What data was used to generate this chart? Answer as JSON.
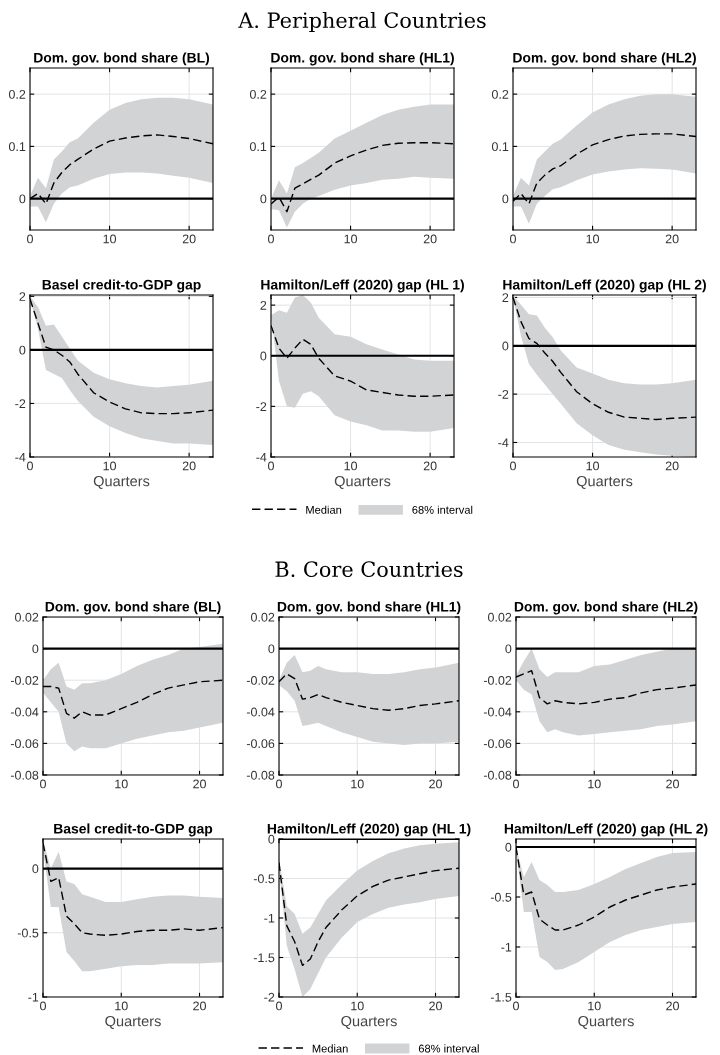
{
  "chart_data": [
    {
      "type": "line",
      "title": "Dom. gov. bond share (BL)",
      "x": [
        0,
        1,
        2,
        3,
        4,
        5,
        6,
        8,
        10,
        12,
        14,
        16,
        18,
        20,
        23
      ],
      "xlim": [
        0,
        23
      ],
      "xticks": [
        0,
        10,
        20
      ],
      "ylim": [
        -0.06,
        0.25
      ],
      "yticks": [
        0,
        0.1,
        0.2
      ],
      "grid": true,
      "ref_lines": [
        {
          "axis": "y",
          "value": 0,
          "color": "#000000"
        }
      ],
      "series": [
        {
          "color": "#000000",
          "line_style": "dashed",
          "values": [
            0.0,
            0.01,
            -0.01,
            0.03,
            0.05,
            0.065,
            0.075,
            0.095,
            0.11,
            0.116,
            0.12,
            0.122,
            0.119,
            0.115,
            0.105
          ],
          "lower": [
            -0.015,
            -0.015,
            -0.045,
            -0.01,
            0.01,
            0.022,
            0.025,
            0.038,
            0.047,
            0.05,
            0.05,
            0.048,
            0.044,
            0.04,
            0.03
          ],
          "upper": [
            0.005,
            0.04,
            0.02,
            0.075,
            0.09,
            0.108,
            0.115,
            0.145,
            0.17,
            0.183,
            0.19,
            0.193,
            0.193,
            0.19,
            0.18
          ]
        }
      ]
    },
    {
      "type": "line",
      "title": "Dom. gov. bond share (HL1)",
      "subtitle": "A. Peripheral Countries",
      "x": [
        0,
        1,
        2,
        3,
        4,
        5,
        6,
        8,
        10,
        12,
        14,
        16,
        18,
        20,
        23
      ],
      "xlim": [
        0,
        23
      ],
      "xticks": [
        0,
        10,
        20
      ],
      "ylim": [
        -0.06,
        0.25
      ],
      "yticks": [
        0,
        0.1,
        0.2
      ],
      "grid": true,
      "ref_lines": [
        {
          "axis": "y",
          "value": 0,
          "color": "#000000"
        }
      ],
      "series": [
        {
          "color": "#000000",
          "line_style": "dashed",
          "values": [
            -0.01,
            0.003,
            -0.025,
            0.02,
            0.028,
            0.037,
            0.045,
            0.068,
            0.082,
            0.093,
            0.102,
            0.106,
            0.107,
            0.107,
            0.105
          ],
          "lower": [
            -0.02,
            -0.022,
            -0.055,
            -0.025,
            -0.01,
            0.0,
            0.005,
            0.017,
            0.025,
            0.03,
            0.036,
            0.038,
            0.042,
            0.04,
            0.038
          ],
          "upper": [
            0.0,
            0.035,
            0.01,
            0.06,
            0.068,
            0.078,
            0.088,
            0.115,
            0.13,
            0.145,
            0.16,
            0.17,
            0.176,
            0.18,
            0.18
          ]
        }
      ]
    },
    {
      "type": "line",
      "title": "Dom. gov. bond share (HL2)",
      "x": [
        0,
        1,
        2,
        3,
        4,
        5,
        6,
        8,
        10,
        12,
        14,
        16,
        18,
        20,
        23
      ],
      "xlim": [
        0,
        23
      ],
      "xticks": [
        0,
        10,
        20
      ],
      "ylim": [
        -0.06,
        0.25
      ],
      "yticks": [
        0,
        0.1,
        0.2
      ],
      "grid": true,
      "ref_lines": [
        {
          "axis": "y",
          "value": 0,
          "color": "#000000"
        }
      ],
      "series": [
        {
          "color": "#000000",
          "line_style": "dashed",
          "values": [
            -0.005,
            0.01,
            -0.01,
            0.03,
            0.045,
            0.057,
            0.063,
            0.085,
            0.103,
            0.113,
            0.12,
            0.123,
            0.124,
            0.124,
            0.119
          ],
          "lower": [
            -0.015,
            -0.015,
            -0.048,
            -0.01,
            0.005,
            0.018,
            0.022,
            0.035,
            0.046,
            0.052,
            0.056,
            0.058,
            0.057,
            0.056,
            0.048
          ],
          "upper": [
            0.005,
            0.04,
            0.025,
            0.075,
            0.09,
            0.105,
            0.113,
            0.14,
            0.165,
            0.18,
            0.19,
            0.197,
            0.2,
            0.2,
            0.195
          ]
        }
      ]
    },
    {
      "type": "line",
      "title": "Basel credit-to-GDP gap",
      "xlabel": "Quarters",
      "x": [
        0,
        1,
        2,
        3,
        4,
        5,
        6,
        8,
        10,
        12,
        14,
        16,
        18,
        20,
        23
      ],
      "xlim": [
        0,
        23
      ],
      "xticks": [
        0,
        10,
        20
      ],
      "ylim": [
        -4,
        2.05
      ],
      "yticks": [
        -4,
        -2,
        0,
        2
      ],
      "grid": true,
      "ref_lines": [
        {
          "axis": "y",
          "value": 0,
          "color": "#000000"
        }
      ],
      "series": [
        {
          "color": "#000000",
          "line_style": "dashed",
          "values": [
            1.9,
            1.0,
            0.1,
            0.0,
            -0.2,
            -0.45,
            -0.9,
            -1.6,
            -1.95,
            -2.2,
            -2.35,
            -2.38,
            -2.38,
            -2.35,
            -2.25
          ],
          "lower": [
            1.9,
            0.8,
            -0.75,
            -0.9,
            -1.05,
            -1.5,
            -1.9,
            -2.5,
            -2.85,
            -3.1,
            -3.3,
            -3.4,
            -3.5,
            -3.5,
            -3.55
          ],
          "upper": [
            2.0,
            1.6,
            0.9,
            0.95,
            0.5,
            0.05,
            -0.4,
            -0.85,
            -1.1,
            -1.25,
            -1.35,
            -1.4,
            -1.35,
            -1.3,
            -1.15
          ]
        }
      ]
    },
    {
      "type": "line",
      "title": "Hamilton/Leff (2020) gap (HL 1)",
      "xlabel": "Quarters",
      "annotations": [
        "68% interval"
      ],
      "x": [
        0,
        1,
        2,
        3,
        4,
        5,
        6,
        8,
        10,
        12,
        14,
        16,
        18,
        20,
        23
      ],
      "xlim": [
        0,
        23
      ],
      "xticks": [
        0,
        10,
        20
      ],
      "ylim": [
        -4,
        2.4
      ],
      "yticks": [
        -4,
        -2,
        0,
        2
      ],
      "grid": true,
      "legend": "bottom",
      "ref_lines": [
        {
          "axis": "y",
          "value": 0,
          "color": "#000000"
        }
      ],
      "series": [
        {
          "name": "Median",
          "color": "#000000",
          "line_style": "dashed",
          "values": [
            1.2,
            0.3,
            -0.1,
            0.3,
            0.65,
            0.45,
            -0.1,
            -0.8,
            -1.0,
            -1.35,
            -1.45,
            -1.55,
            -1.6,
            -1.6,
            -1.55
          ],
          "lower": [
            1.6,
            -1.0,
            -2.0,
            -2.05,
            -1.5,
            -1.4,
            -1.6,
            -2.35,
            -2.6,
            -2.75,
            -2.95,
            -2.95,
            -3.0,
            -3.0,
            -2.85
          ],
          "upper": [
            1.6,
            1.8,
            1.7,
            2.3,
            2.4,
            2.1,
            1.5,
            0.85,
            0.75,
            0.45,
            0.25,
            0.05,
            -0.15,
            -0.2,
            -0.2
          ]
        }
      ]
    },
    {
      "type": "line",
      "title": "Hamilton/Leff (2020) gap (HL 2)",
      "xlabel": "Quarters",
      "x": [
        0,
        1,
        2,
        3,
        4,
        5,
        6,
        8,
        10,
        12,
        14,
        16,
        18,
        20,
        23
      ],
      "xlim": [
        0,
        23
      ],
      "xticks": [
        0,
        10,
        20
      ],
      "ylim": [
        -4.6,
        2.1
      ],
      "yticks": [
        -4,
        -2,
        0,
        2
      ],
      "grid": true,
      "ref_lines": [
        {
          "axis": "y",
          "value": 0,
          "color": "#000000"
        }
      ],
      "series": [
        {
          "color": "#000000",
          "line_style": "dashed",
          "values": [
            2.0,
            1.0,
            0.3,
            0.1,
            -0.3,
            -0.65,
            -1.1,
            -1.9,
            -2.4,
            -2.75,
            -2.95,
            -3.0,
            -3.05,
            -3.0,
            -2.95
          ],
          "lower": [
            2.0,
            0.4,
            -0.75,
            -1.2,
            -1.6,
            -2.0,
            -2.4,
            -3.2,
            -3.7,
            -4.1,
            -4.3,
            -4.4,
            -4.5,
            -4.55,
            -4.6
          ],
          "upper": [
            2.1,
            1.7,
            1.3,
            1.25,
            0.75,
            0.35,
            -0.2,
            -0.9,
            -1.15,
            -1.4,
            -1.55,
            -1.6,
            -1.6,
            -1.55,
            -1.4
          ]
        }
      ]
    },
    {
      "type": "line",
      "title": "Dom. gov. bond share (BL)",
      "x": [
        0,
        1,
        2,
        3,
        4,
        5,
        6,
        8,
        10,
        12,
        14,
        16,
        18,
        20,
        23
      ],
      "xlim": [
        0,
        23
      ],
      "xticks": [
        0,
        10,
        20
      ],
      "ylim": [
        -0.08,
        0.02
      ],
      "yticks": [
        -0.08,
        -0.06,
        -0.04,
        -0.02,
        0,
        0.02
      ],
      "grid": true,
      "ref_lines": [
        {
          "axis": "y",
          "value": 0,
          "color": "#000000"
        }
      ],
      "series": [
        {
          "color": "#000000",
          "line_style": "dashed",
          "values": [
            -0.024,
            -0.024,
            -0.025,
            -0.041,
            -0.044,
            -0.04,
            -0.042,
            -0.042,
            -0.038,
            -0.034,
            -0.029,
            -0.025,
            -0.023,
            -0.021,
            -0.02
          ],
          "lower": [
            -0.028,
            -0.034,
            -0.04,
            -0.06,
            -0.065,
            -0.062,
            -0.063,
            -0.063,
            -0.06,
            -0.057,
            -0.055,
            -0.053,
            -0.052,
            -0.05,
            -0.047
          ],
          "upper": [
            -0.02,
            -0.013,
            -0.009,
            -0.024,
            -0.026,
            -0.022,
            -0.022,
            -0.02,
            -0.016,
            -0.011,
            -0.007,
            -0.004,
            0.0,
            0.001,
            0.003
          ]
        }
      ]
    },
    {
      "type": "line",
      "title": "Dom. gov. bond share (HL1)",
      "subtitle": "B. Core Countries",
      "x": [
        0,
        1,
        2,
        3,
        4,
        5,
        6,
        8,
        10,
        12,
        14,
        16,
        18,
        20,
        23
      ],
      "xlim": [
        0,
        23
      ],
      "xticks": [
        0,
        10,
        20
      ],
      "ylim": [
        -0.08,
        0.02
      ],
      "yticks": [
        -0.08,
        -0.06,
        -0.04,
        -0.02,
        0,
        0.02
      ],
      "grid": true,
      "ref_lines": [
        {
          "axis": "y",
          "value": 0,
          "color": "#000000"
        }
      ],
      "series": [
        {
          "color": "#000000",
          "line_style": "dashed",
          "values": [
            -0.021,
            -0.016,
            -0.019,
            -0.032,
            -0.031,
            -0.029,
            -0.031,
            -0.034,
            -0.036,
            -0.038,
            -0.039,
            -0.038,
            -0.036,
            -0.035,
            -0.033
          ],
          "lower": [
            -0.023,
            -0.027,
            -0.033,
            -0.049,
            -0.048,
            -0.047,
            -0.049,
            -0.053,
            -0.056,
            -0.059,
            -0.06,
            -0.061,
            -0.06,
            -0.06,
            -0.059
          ],
          "upper": [
            -0.02,
            -0.009,
            -0.004,
            -0.015,
            -0.014,
            -0.011,
            -0.013,
            -0.015,
            -0.015,
            -0.016,
            -0.016,
            -0.015,
            -0.013,
            -0.012,
            -0.009
          ]
        }
      ]
    },
    {
      "type": "line",
      "title": "Dom. gov. bond share (HL2)",
      "x": [
        0,
        1,
        2,
        3,
        4,
        5,
        6,
        8,
        10,
        12,
        14,
        16,
        18,
        20,
        23
      ],
      "xlim": [
        0,
        23
      ],
      "xticks": [
        0,
        10,
        20
      ],
      "ylim": [
        -0.08,
        0.02
      ],
      "yticks": [
        -0.08,
        -0.06,
        -0.04,
        -0.02,
        0,
        0.02
      ],
      "grid": true,
      "ref_lines": [
        {
          "axis": "y",
          "value": 0,
          "color": "#000000"
        }
      ],
      "series": [
        {
          "color": "#000000",
          "line_style": "dashed",
          "values": [
            -0.018,
            -0.016,
            -0.014,
            -0.031,
            -0.035,
            -0.033,
            -0.034,
            -0.035,
            -0.034,
            -0.032,
            -0.031,
            -0.028,
            -0.026,
            -0.025,
            -0.023
          ],
          "lower": [
            -0.02,
            -0.026,
            -0.029,
            -0.046,
            -0.053,
            -0.051,
            -0.053,
            -0.055,
            -0.054,
            -0.053,
            -0.052,
            -0.051,
            -0.049,
            -0.048,
            -0.046
          ],
          "upper": [
            -0.017,
            -0.008,
            0.0,
            -0.013,
            -0.018,
            -0.015,
            -0.015,
            -0.015,
            -0.011,
            -0.01,
            -0.007,
            -0.004,
            -0.002,
            0.0,
            0.0
          ]
        }
      ]
    },
    {
      "type": "line",
      "title": "Basel credit-to-GDP gap",
      "xlabel": "Quarters",
      "x": [
        0,
        1,
        2,
        3,
        4,
        5,
        6,
        8,
        10,
        12,
        14,
        16,
        18,
        20,
        23
      ],
      "xlim": [
        0,
        23
      ],
      "xticks": [
        0,
        10,
        20
      ],
      "ylim": [
        -1,
        0.23
      ],
      "yticks": [
        -1,
        -0.5,
        0
      ],
      "grid": true,
      "ref_lines": [
        {
          "axis": "y",
          "value": 0,
          "color": "#000000"
        }
      ],
      "series": [
        {
          "color": "#000000",
          "line_style": "dashed",
          "values": [
            0.2,
            -0.1,
            -0.07,
            -0.37,
            -0.43,
            -0.5,
            -0.51,
            -0.52,
            -0.51,
            -0.49,
            -0.48,
            -0.48,
            -0.47,
            -0.48,
            -0.46
          ],
          "lower": [
            0.15,
            -0.3,
            -0.3,
            -0.65,
            -0.72,
            -0.8,
            -0.8,
            -0.78,
            -0.76,
            -0.75,
            -0.75,
            -0.74,
            -0.74,
            -0.74,
            -0.73
          ],
          "upper": [
            0.22,
            0.0,
            0.13,
            -0.1,
            -0.12,
            -0.2,
            -0.22,
            -0.26,
            -0.26,
            -0.24,
            -0.22,
            -0.21,
            -0.21,
            -0.22,
            -0.23
          ]
        }
      ]
    },
    {
      "type": "line",
      "title": "Hamilton/Leff (2020) gap (HL 1)",
      "xlabel": "Quarters",
      "annotations": [
        "68% interval"
      ],
      "x": [
        0,
        1,
        2,
        3,
        4,
        5,
        6,
        8,
        10,
        12,
        14,
        16,
        18,
        20,
        23
      ],
      "xlim": [
        0,
        23
      ],
      "xticks": [
        0,
        10,
        20
      ],
      "ylim": [
        -2,
        0
      ],
      "yticks": [
        -2,
        -1.5,
        -1,
        -0.5,
        0
      ],
      "grid": true,
      "legend": "bottom",
      "ref_lines": [
        {
          "axis": "y",
          "value": 0,
          "color": "#000000"
        }
      ],
      "series": [
        {
          "name": "Median",
          "color": "#000000",
          "line_style": "dashed",
          "values": [
            -0.3,
            -1.1,
            -1.3,
            -1.6,
            -1.52,
            -1.3,
            -1.12,
            -0.9,
            -0.72,
            -0.6,
            -0.52,
            -0.48,
            -0.44,
            -0.4,
            -0.37
          ],
          "lower": [
            -0.35,
            -1.35,
            -1.65,
            -2.0,
            -1.9,
            -1.7,
            -1.5,
            -1.25,
            -1.05,
            -0.95,
            -0.87,
            -0.83,
            -0.8,
            -0.76,
            -0.72
          ],
          "upper": [
            -0.25,
            -0.85,
            -0.95,
            -1.2,
            -1.12,
            -0.95,
            -0.78,
            -0.58,
            -0.4,
            -0.28,
            -0.18,
            -0.12,
            -0.08,
            -0.06,
            -0.04
          ]
        }
      ]
    },
    {
      "type": "line",
      "title": "Hamilton/Leff (2020) gap (HL 2)",
      "xlabel": "Quarters",
      "x": [
        0,
        1,
        2,
        3,
        4,
        5,
        6,
        8,
        10,
        12,
        14,
        16,
        18,
        20,
        23
      ],
      "xlim": [
        0,
        23
      ],
      "xticks": [
        0,
        10,
        20
      ],
      "ylim": [
        -1.5,
        0.08
      ],
      "yticks": [
        -1.5,
        -1,
        -0.5,
        0
      ],
      "grid": true,
      "ref_lines": [
        {
          "axis": "y",
          "value": 0,
          "color": "#000000"
        }
      ],
      "series": [
        {
          "color": "#000000",
          "line_style": "dashed",
          "values": [
            0.0,
            -0.48,
            -0.45,
            -0.72,
            -0.78,
            -0.83,
            -0.83,
            -0.78,
            -0.7,
            -0.6,
            -0.53,
            -0.48,
            -0.43,
            -0.4,
            -0.37
          ],
          "lower": [
            -0.03,
            -0.65,
            -0.65,
            -1.1,
            -1.15,
            -1.23,
            -1.22,
            -1.15,
            -1.05,
            -0.95,
            -0.88,
            -0.83,
            -0.8,
            -0.77,
            -0.75
          ],
          "upper": [
            0.0,
            -0.3,
            -0.15,
            -0.33,
            -0.38,
            -0.45,
            -0.45,
            -0.43,
            -0.37,
            -0.3,
            -0.22,
            -0.16,
            -0.1,
            -0.06,
            -0.05
          ]
        }
      ]
    }
  ]
}
